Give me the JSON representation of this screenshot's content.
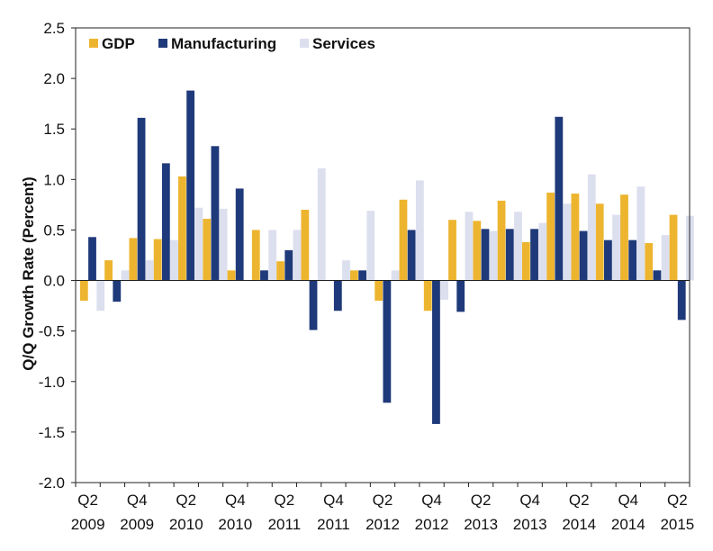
{
  "chart_data": {
    "type": "bar",
    "title": "",
    "xlabel": "",
    "ylabel": "Q/Q Growth Rate (Percent)",
    "ylim": [
      -2.0,
      2.5
    ],
    "yticks": [
      2.5,
      2.0,
      1.5,
      1.0,
      0.5,
      0.0,
      -0.5,
      -1.0,
      -1.5,
      -2.0
    ],
    "ytick_labels": [
      "2.5",
      "2.0",
      "1.5",
      "1.0",
      "0.5",
      "0.0",
      "-0.5",
      "-1.0",
      "-1.5",
      "-2.0"
    ],
    "grid": false,
    "legend_position": "top-left",
    "categories": [
      "Q2 2009",
      "Q3 2009",
      "Q4 2009",
      "Q1 2010",
      "Q2 2010",
      "Q3 2010",
      "Q4 2010",
      "Q1 2011",
      "Q2 2011",
      "Q3 2011",
      "Q4 2011",
      "Q1 2012",
      "Q2 2012",
      "Q3 2012",
      "Q4 2012",
      "Q1 2013",
      "Q2 2013",
      "Q3 2013",
      "Q4 2013",
      "Q1 2014",
      "Q2 2014",
      "Q3 2014",
      "Q4 2014",
      "Q1 2015",
      "Q2 2015"
    ],
    "x_tick_labels": [
      {
        "index": 0,
        "line1": "Q2",
        "line2": "2009"
      },
      {
        "index": 2,
        "line1": "Q4",
        "line2": "2009"
      },
      {
        "index": 4,
        "line1": "Q2",
        "line2": "2010"
      },
      {
        "index": 6,
        "line1": "Q4",
        "line2": "2010"
      },
      {
        "index": 8,
        "line1": "Q2",
        "line2": "2011"
      },
      {
        "index": 10,
        "line1": "Q4",
        "line2": "2011"
      },
      {
        "index": 12,
        "line1": "Q2",
        "line2": "2012"
      },
      {
        "index": 14,
        "line1": "Q4",
        "line2": "2012"
      },
      {
        "index": 16,
        "line1": "Q2",
        "line2": "2013"
      },
      {
        "index": 18,
        "line1": "Q4",
        "line2": "2013"
      },
      {
        "index": 20,
        "line1": "Q2",
        "line2": "2014"
      },
      {
        "index": 22,
        "line1": "Q4",
        "line2": "2014"
      },
      {
        "index": 24,
        "line1": "Q2",
        "line2": "2015"
      }
    ],
    "series": [
      {
        "name": "GDP",
        "color": "#EDB52F",
        "values": [
          -0.2,
          0.2,
          0.42,
          0.41,
          1.03,
          0.61,
          0.1,
          0.5,
          0.19,
          0.7,
          0.0,
          0.1,
          -0.2,
          0.8,
          -0.3,
          0.6,
          0.59,
          0.79,
          0.38,
          0.87,
          0.86,
          0.76,
          0.85,
          0.37,
          0.65
        ]
      },
      {
        "name": "Manufacturing",
        "color": "#1F3A7A",
        "values": [
          0.43,
          -0.21,
          1.61,
          1.16,
          1.88,
          1.33,
          0.91,
          0.1,
          0.3,
          -0.49,
          -0.3,
          0.1,
          -1.21,
          0.5,
          -1.42,
          -0.31,
          0.51,
          0.51,
          0.51,
          1.62,
          0.49,
          0.4,
          0.4,
          0.1,
          -0.39
        ]
      },
      {
        "name": "Services",
        "color": "#DCDFEE",
        "values": [
          -0.3,
          0.1,
          0.2,
          0.4,
          0.72,
          0.71,
          0.0,
          0.5,
          0.5,
          1.11,
          0.2,
          0.69,
          0.1,
          0.99,
          -0.19,
          0.68,
          0.49,
          0.68,
          0.57,
          0.76,
          1.05,
          0.65,
          0.93,
          0.45,
          0.64
        ]
      }
    ]
  }
}
